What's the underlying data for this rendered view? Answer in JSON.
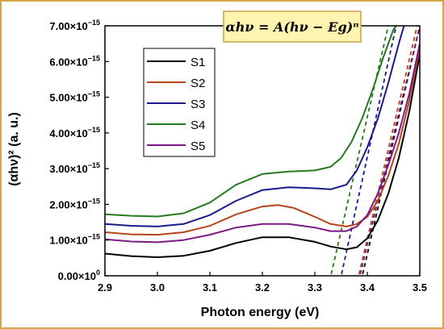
{
  "chart_data": {
    "type": "line",
    "xlabel": "Photon energy (eV)",
    "ylabel": "(αhν)² (a. u.)",
    "xlim": [
      2.9,
      3.5
    ],
    "ylim": [
      0,
      7e-15
    ],
    "x_ticks": [
      2.9,
      3.0,
      3.1,
      3.2,
      3.3,
      3.4,
      3.5
    ],
    "x_tick_labels": [
      "2.9",
      "3.0",
      "3.1",
      "3.2",
      "3.3",
      "3.4",
      "3.5"
    ],
    "y_ticks": [
      0,
      1e-15,
      2e-15,
      3e-15,
      4e-15,
      5e-15,
      6e-15,
      7e-15
    ],
    "y_tick_labels": [
      {
        "mantissa": "0.00×10",
        "exp": "0"
      },
      {
        "mantissa": "1.00×10",
        "exp": "−15"
      },
      {
        "mantissa": "2.00×10",
        "exp": "−15"
      },
      {
        "mantissa": "3.00×10",
        "exp": "−15"
      },
      {
        "mantissa": "4.00×10",
        "exp": "−15"
      },
      {
        "mantissa": "5.00×10",
        "exp": "−15"
      },
      {
        "mantissa": "6.00×10",
        "exp": "−15"
      },
      {
        "mantissa": "7.00×10",
        "exp": "−15"
      }
    ],
    "equation": "αhν = A(hν − Eg)ⁿ",
    "legend_position": "upper-left",
    "series": [
      {
        "name": "S1",
        "color": "#000000",
        "x": [
          2.9,
          2.95,
          3.0,
          3.05,
          3.1,
          3.15,
          3.2,
          3.25,
          3.3,
          3.33,
          3.36,
          3.38,
          3.4,
          3.42,
          3.44,
          3.46,
          3.48,
          3.5,
          3.505
        ],
        "y": [
          6.2e-16,
          5.5e-16,
          5.2e-16,
          5.6e-16,
          7e-16,
          9.2e-16,
          1.08e-15,
          1.08e-15,
          9.5e-16,
          8.2e-16,
          7.4e-16,
          8e-16,
          1.05e-15,
          1.55e-15,
          2.3e-15,
          3.3e-15,
          4.6e-15,
          6.2e-15,
          7e-15
        ],
        "fit": {
          "x": [
            3.385,
            3.5
          ],
          "y": [
            -3.5e-16,
            7e-15
          ]
        }
      },
      {
        "name": "S2",
        "color": "#b5461b",
        "x": [
          2.9,
          2.95,
          3.0,
          3.05,
          3.1,
          3.15,
          3.2,
          3.23,
          3.26,
          3.3,
          3.33,
          3.36,
          3.38,
          3.4,
          3.42,
          3.44,
          3.46,
          3.48,
          3.5,
          3.505
        ],
        "y": [
          1.22e-15,
          1.16e-15,
          1.15e-15,
          1.22e-15,
          1.4e-15,
          1.72e-15,
          1.94e-15,
          1.98e-15,
          1.9e-15,
          1.65e-15,
          1.45e-15,
          1.38e-15,
          1.45e-15,
          1.65e-15,
          2.1e-15,
          2.8e-15,
          3.7e-15,
          4.9e-15,
          6.4e-15,
          7e-15
        ],
        "fit": {
          "x": [
            3.378,
            3.495
          ],
          "y": [
            -3.5e-16,
            7e-15
          ]
        }
      },
      {
        "name": "S3",
        "color": "#1a1a8c",
        "x": [
          2.9,
          2.95,
          3.0,
          3.05,
          3.1,
          3.15,
          3.2,
          3.25,
          3.3,
          3.33,
          3.36,
          3.38,
          3.4,
          3.42,
          3.44,
          3.46,
          3.47
        ],
        "y": [
          1.45e-15,
          1.4e-15,
          1.38e-15,
          1.45e-15,
          1.7e-15,
          2.1e-15,
          2.4e-15,
          2.48e-15,
          2.45e-15,
          2.42e-15,
          2.55e-15,
          2.95e-15,
          3.6e-15,
          4.4e-15,
          5.4e-15,
          6.5e-15,
          7e-15
        ],
        "fit": {
          "x": [
            3.345,
            3.455
          ],
          "y": [
            -3.5e-16,
            7e-15
          ]
        }
      },
      {
        "name": "S4",
        "color": "#267a1f",
        "x": [
          2.9,
          2.95,
          3.0,
          3.05,
          3.1,
          3.15,
          3.2,
          3.25,
          3.3,
          3.33,
          3.35,
          3.37,
          3.39,
          3.41,
          3.43,
          3.45,
          3.455
        ],
        "y": [
          1.72e-15,
          1.68e-15,
          1.66e-15,
          1.75e-15,
          2.05e-15,
          2.55e-15,
          2.85e-15,
          2.92e-15,
          2.95e-15,
          3.05e-15,
          3.3e-15,
          3.75e-15,
          4.4e-15,
          5.2e-15,
          6.1e-15,
          6.9e-15,
          7e-15
        ],
        "fit": {
          "x": [
            3.325,
            3.44
          ],
          "y": [
            -3.5e-16,
            7e-15
          ]
        }
      },
      {
        "name": "S5",
        "color": "#7b1a85",
        "x": [
          2.9,
          2.95,
          3.0,
          3.05,
          3.1,
          3.15,
          3.2,
          3.25,
          3.3,
          3.33,
          3.36,
          3.38,
          3.4,
          3.42,
          3.44,
          3.46,
          3.48,
          3.5,
          3.51
        ],
        "y": [
          1.02e-15,
          9.6e-16,
          9.4e-16,
          1e-15,
          1.15e-15,
          1.35e-15,
          1.45e-15,
          1.45e-15,
          1.35e-15,
          1.25e-15,
          1.25e-15,
          1.38e-15,
          1.7e-15,
          2.3e-15,
          3.1e-15,
          4e-15,
          5.1e-15,
          6.5e-15,
          7e-15
        ],
        "fit": {
          "x": [
            3.38,
            3.5
          ],
          "y": [
            -3.5e-16,
            7e-15
          ]
        }
      }
    ]
  }
}
